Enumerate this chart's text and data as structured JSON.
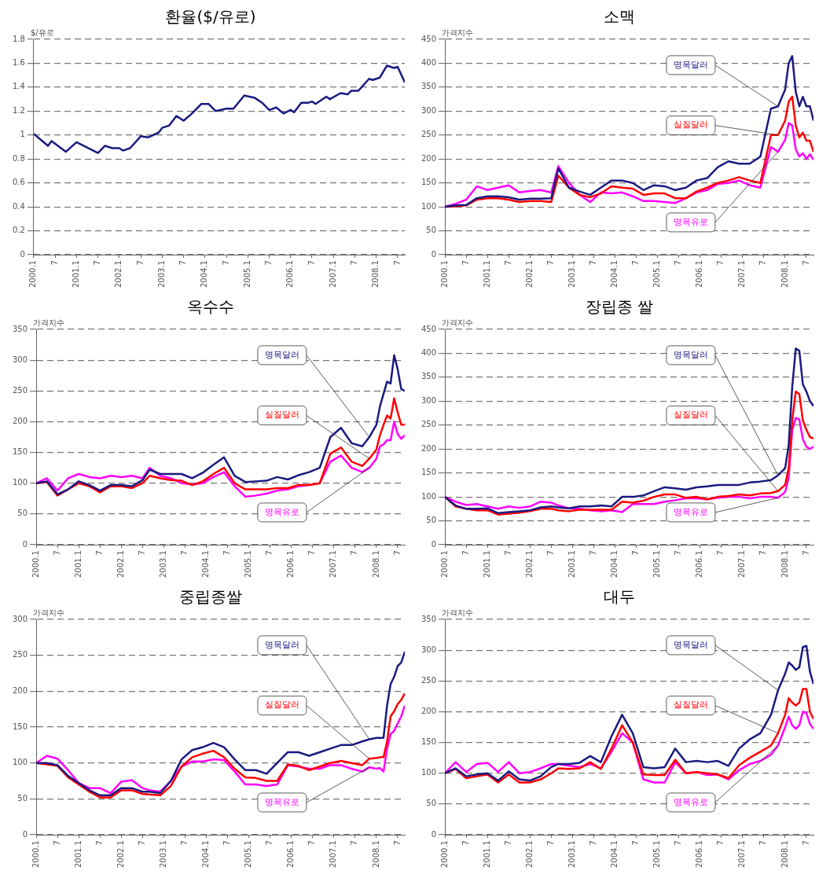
{
  "chart_data": [
    {
      "type": "line",
      "title": "환율($/유로)",
      "ylabel": "$/유로",
      "grid": "y",
      "marker": "none",
      "xlim": [
        "2000-01",
        "2008-09"
      ],
      "ylim": [
        0,
        1.8
      ],
      "yticks": [
        0,
        0.2,
        0.4,
        0.6,
        0.8,
        1,
        1.2,
        1.4,
        1.6,
        1.8
      ],
      "xticks": [
        {
          "value": "2000-01",
          "label": "2000.1"
        },
        {
          "value": "2000-07",
          "label": "7"
        },
        {
          "value": "2001-01",
          "label": "2001.1"
        },
        {
          "value": "2001-07",
          "label": "7"
        },
        {
          "value": "2002-01",
          "label": "2002.1"
        },
        {
          "value": "2002-07",
          "label": "7"
        },
        {
          "value": "2003-01",
          "label": "2003.1"
        },
        {
          "value": "2003-07",
          "label": "7"
        },
        {
          "value": "2004-01",
          "label": "2004.1"
        },
        {
          "value": "2004-07",
          "label": "7"
        },
        {
          "value": "2005-01",
          "label": "2005.1"
        },
        {
          "value": "2005-07",
          "label": "7"
        },
        {
          "value": "2006-01",
          "label": "2006.1"
        },
        {
          "value": "2006-07",
          "label": "7"
        },
        {
          "value": "2007-01",
          "label": "2007.1"
        },
        {
          "value": "2007-07",
          "label": "7"
        },
        {
          "value": "2008-01",
          "label": "2008.1"
        },
        {
          "value": "2008-07",
          "label": "7"
        }
      ],
      "x": [
        "2000-01",
        "2000-05",
        "2000-06",
        "2000-10",
        "2001-01",
        "2001-07",
        "2001-09",
        "2001-11",
        "2002-01",
        "2002-02",
        "2002-04",
        "2002-07",
        "2002-09",
        "2002-12",
        "2003-01",
        "2003-03",
        "2003-05",
        "2003-07",
        "2003-09",
        "2003-12",
        "2004-02",
        "2004-04",
        "2004-07",
        "2004-09",
        "2004-12",
        "2005-03",
        "2005-05",
        "2005-07",
        "2005-09",
        "2005-11",
        "2006-01",
        "2006-02",
        "2006-04",
        "2006-06",
        "2006-07",
        "2006-08",
        "2006-11",
        "2006-12",
        "2007-03",
        "2007-05",
        "2007-06",
        "2007-08",
        "2007-11",
        "2007-12",
        "2008-02",
        "2008-04",
        "2008-06",
        "2008-07",
        "2008-09"
      ],
      "series": [
        {
          "color": "#1a1a80",
          "values": [
            1.01,
            0.91,
            0.95,
            0.86,
            0.94,
            0.85,
            0.91,
            0.89,
            0.89,
            0.87,
            0.89,
            0.99,
            0.98,
            1.02,
            1.06,
            1.08,
            1.16,
            1.12,
            1.17,
            1.26,
            1.26,
            1.2,
            1.22,
            1.22,
            1.33,
            1.31,
            1.27,
            1.21,
            1.23,
            1.18,
            1.21,
            1.19,
            1.27,
            1.27,
            1.28,
            1.26,
            1.32,
            1.3,
            1.35,
            1.34,
            1.37,
            1.37,
            1.47,
            1.46,
            1.48,
            1.58,
            1.56,
            1.57,
            1.44
          ]
        }
      ]
    },
    {
      "type": "line",
      "title": "소맥",
      "ylabel": "가격지수",
      "grid": "y",
      "marker": "none",
      "xlim": [
        "2000-01",
        "2008-09"
      ],
      "ylim": [
        0,
        450
      ],
      "yticks": [
        0,
        50,
        100,
        150,
        200,
        250,
        300,
        350,
        400,
        450
      ],
      "xticks": [
        {
          "value": "2000-01",
          "label": "2000.1"
        },
        {
          "value": "2000-07",
          "label": "7"
        },
        {
          "value": "2001-01",
          "label": "2001.1"
        },
        {
          "value": "2001-07",
          "label": "7"
        },
        {
          "value": "2002-01",
          "label": "2002.1"
        },
        {
          "value": "2002-07",
          "label": "7"
        },
        {
          "value": "2003-01",
          "label": "2003.1"
        },
        {
          "value": "2003-07",
          "label": "7"
        },
        {
          "value": "2004-01",
          "label": "2004.1"
        },
        {
          "value": "2004-07",
          "label": "7"
        },
        {
          "value": "2005-01",
          "label": "2005.1"
        },
        {
          "value": "2005-07",
          "label": "7"
        },
        {
          "value": "2006-01",
          "label": "2006.1"
        },
        {
          "value": "2006-07",
          "label": "7"
        },
        {
          "value": "2007-01",
          "label": "2007.1"
        },
        {
          "value": "2007-07",
          "label": "7"
        },
        {
          "value": "2008-01",
          "label": "2008.1"
        },
        {
          "value": "2008-07",
          "label": "7"
        }
      ],
      "x": [
        "2000-01",
        "2000-04",
        "2000-07",
        "2000-10",
        "2001-01",
        "2001-04",
        "2001-07",
        "2001-10",
        "2002-01",
        "2002-04",
        "2002-07",
        "2002-09",
        "2002-12",
        "2003-03",
        "2003-06",
        "2003-09",
        "2003-12",
        "2004-03",
        "2004-06",
        "2004-09",
        "2004-12",
        "2005-03",
        "2005-06",
        "2005-09",
        "2005-12",
        "2006-03",
        "2006-06",
        "2006-09",
        "2006-12",
        "2007-03",
        "2007-06",
        "2007-09",
        "2007-11",
        "2008-01",
        "2008-02",
        "2008-03",
        "2008-04",
        "2008-05",
        "2008-06",
        "2008-07",
        "2008-08",
        "2008-09"
      ],
      "series": [
        {
          "name": "명목달러",
          "color": "#1a1a80",
          "values": [
            100,
            103,
            104,
            118,
            122,
            122,
            120,
            115,
            117,
            117,
            118,
            180,
            140,
            132,
            125,
            140,
            155,
            155,
            150,
            135,
            145,
            143,
            135,
            140,
            155,
            160,
            183,
            195,
            190,
            190,
            205,
            305,
            310,
            345,
            400,
            415,
            340,
            310,
            330,
            310,
            310,
            280
          ]
        },
        {
          "name": "실질달러",
          "color": "#ff0000",
          "values": [
            100,
            101,
            103,
            115,
            118,
            118,
            115,
            110,
            112,
            112,
            110,
            165,
            140,
            125,
            120,
            128,
            143,
            140,
            138,
            125,
            128,
            128,
            118,
            118,
            132,
            140,
            150,
            155,
            162,
            155,
            150,
            250,
            250,
            280,
            320,
            330,
            270,
            245,
            255,
            238,
            238,
            215
          ]
        },
        {
          "name": "명목유로",
          "color": "#ff00ff",
          "values": [
            100,
            106,
            115,
            143,
            135,
            140,
            145,
            130,
            133,
            135,
            130,
            185,
            150,
            125,
            110,
            130,
            128,
            130,
            122,
            112,
            112,
            110,
            108,
            118,
            130,
            135,
            148,
            150,
            155,
            145,
            140,
            225,
            215,
            240,
            275,
            270,
            220,
            205,
            212,
            200,
            210,
            198
          ]
        }
      ]
    },
    {
      "type": "line",
      "title": "옥수수",
      "ylabel": "가격지수",
      "grid": "y",
      "marker": "none",
      "xlim": [
        "2000-01",
        "2008-09"
      ],
      "ylim": [
        0,
        350
      ],
      "yticks": [
        0,
        50,
        100,
        150,
        200,
        250,
        300,
        350
      ],
      "xticks": [
        {
          "value": "2000-01",
          "label": "2000.1"
        },
        {
          "value": "2000-07",
          "label": "7"
        },
        {
          "value": "2001-01",
          "label": "2001.1"
        },
        {
          "value": "2001-07",
          "label": "7"
        },
        {
          "value": "2002-01",
          "label": "2002.1"
        },
        {
          "value": "2002-07",
          "label": "7"
        },
        {
          "value": "2003-01",
          "label": "2003.1"
        },
        {
          "value": "2003-07",
          "label": "7"
        },
        {
          "value": "2004-01",
          "label": "2004.1"
        },
        {
          "value": "2004-07",
          "label": "7"
        },
        {
          "value": "2005-01",
          "label": "2005.1"
        },
        {
          "value": "2005-07",
          "label": "7"
        },
        {
          "value": "2006-01",
          "label": "2006.1"
        },
        {
          "value": "2006-07",
          "label": "7"
        },
        {
          "value": "2007-01",
          "label": "2007.1"
        },
        {
          "value": "2007-07",
          "label": "7"
        },
        {
          "value": "2008-01",
          "label": "2008.1"
        },
        {
          "value": "2008-07",
          "label": "7"
        }
      ],
      "x": [
        "2000-01",
        "2000-04",
        "2000-07",
        "2000-10",
        "2001-01",
        "2001-04",
        "2001-07",
        "2001-10",
        "2002-01",
        "2002-04",
        "2002-07",
        "2002-09",
        "2002-12",
        "2003-03",
        "2003-06",
        "2003-09",
        "2003-12",
        "2004-03",
        "2004-06",
        "2004-09",
        "2004-12",
        "2005-03",
        "2005-06",
        "2005-09",
        "2005-12",
        "2006-03",
        "2006-06",
        "2006-09",
        "2006-12",
        "2007-03",
        "2007-06",
        "2007-09",
        "2007-11",
        "2008-01",
        "2008-02",
        "2008-03",
        "2008-04",
        "2008-05",
        "2008-06",
        "2008-07",
        "2008-08",
        "2008-09"
      ],
      "series": [
        {
          "name": "명목달러",
          "color": "#1a1a80",
          "values": [
            100,
            103,
            82,
            90,
            103,
            97,
            88,
            97,
            97,
            95,
            105,
            122,
            115,
            115,
            115,
            108,
            117,
            130,
            142,
            112,
            102,
            103,
            104,
            110,
            106,
            113,
            118,
            125,
            175,
            190,
            165,
            160,
            175,
            195,
            225,
            245,
            265,
            262,
            308,
            285,
            253,
            250
          ]
        },
        {
          "name": "실질달러",
          "color": "#ff0000",
          "values": [
            100,
            102,
            80,
            90,
            100,
            95,
            85,
            95,
            95,
            92,
            100,
            112,
            108,
            105,
            104,
            97,
            103,
            115,
            125,
            100,
            90,
            90,
            90,
            92,
            92,
            97,
            97,
            100,
            148,
            158,
            135,
            128,
            140,
            155,
            178,
            195,
            210,
            205,
            238,
            215,
            195,
            195
          ]
        },
        {
          "name": "명목유로",
          "color": "#ff00ff",
          "values": [
            100,
            108,
            88,
            108,
            115,
            110,
            108,
            112,
            110,
            112,
            108,
            125,
            112,
            108,
            100,
            98,
            100,
            110,
            118,
            95,
            78,
            80,
            83,
            88,
            90,
            95,
            97,
            100,
            135,
            145,
            125,
            118,
            125,
            140,
            160,
            163,
            170,
            170,
            200,
            180,
            172,
            178
          ]
        }
      ]
    },
    {
      "type": "line",
      "title": "장립종 쌀",
      "ylabel": "가격지수",
      "grid": "y",
      "marker": "none",
      "xlim": [
        "2000-01",
        "2008-09"
      ],
      "ylim": [
        0,
        450
      ],
      "yticks": [
        0,
        50,
        100,
        150,
        200,
        250,
        300,
        350,
        400,
        450
      ],
      "xticks": [
        {
          "value": "2000-01",
          "label": "2000.1"
        },
        {
          "value": "2000-07",
          "label": "7"
        },
        {
          "value": "2001-01",
          "label": "2001.1"
        },
        {
          "value": "2001-07",
          "label": "7"
        },
        {
          "value": "2002-01",
          "label": "2002.1"
        },
        {
          "value": "2002-07",
          "label": "7"
        },
        {
          "value": "2003-01",
          "label": "2003.1"
        },
        {
          "value": "2003-07",
          "label": "7"
        },
        {
          "value": "2004-01",
          "label": "2004.1"
        },
        {
          "value": "2004-07",
          "label": "7"
        },
        {
          "value": "2005-01",
          "label": "2005.1"
        },
        {
          "value": "2005-07",
          "label": "7"
        },
        {
          "value": "2006-01",
          "label": "2006.1"
        },
        {
          "value": "2006-07",
          "label": "7"
        },
        {
          "value": "2007-01",
          "label": "2007.1"
        },
        {
          "value": "2007-07",
          "label": "7"
        },
        {
          "value": "2008-01",
          "label": "2008.1"
        },
        {
          "value": "2008-07",
          "label": "7"
        }
      ],
      "x": [
        "2000-01",
        "2000-04",
        "2000-07",
        "2000-10",
        "2001-01",
        "2001-04",
        "2001-07",
        "2001-10",
        "2002-01",
        "2002-04",
        "2002-07",
        "2002-09",
        "2002-12",
        "2003-03",
        "2003-06",
        "2003-09",
        "2003-12",
        "2004-03",
        "2004-06",
        "2004-09",
        "2004-12",
        "2005-03",
        "2005-06",
        "2005-09",
        "2005-12",
        "2006-03",
        "2006-06",
        "2006-09",
        "2006-12",
        "2007-03",
        "2007-06",
        "2007-09",
        "2007-11",
        "2008-01",
        "2008-02",
        "2008-03",
        "2008-04",
        "2008-05",
        "2008-06",
        "2008-07",
        "2008-08",
        "2008-09"
      ],
      "series": [
        {
          "name": "명목달러",
          "color": "#1a1a80",
          "values": [
            100,
            82,
            75,
            75,
            76,
            66,
            68,
            70,
            72,
            78,
            80,
            78,
            76,
            80,
            80,
            82,
            80,
            100,
            100,
            103,
            112,
            120,
            118,
            115,
            120,
            122,
            125,
            125,
            125,
            130,
            132,
            135,
            145,
            160,
            208,
            330,
            410,
            405,
            335,
            320,
            300,
            290
          ]
        },
        {
          "name": "실질달러",
          "color": "#ff0000",
          "values": [
            100,
            80,
            75,
            72,
            72,
            63,
            65,
            67,
            70,
            75,
            75,
            72,
            70,
            73,
            73,
            73,
            73,
            90,
            88,
            92,
            100,
            105,
            105,
            98,
            100,
            95,
            100,
            102,
            105,
            103,
            107,
            108,
            112,
            125,
            160,
            260,
            320,
            315,
            260,
            240,
            225,
            222
          ]
        },
        {
          "name": "명목유로",
          "color": "#ff00ff",
          "values": [
            100,
            90,
            83,
            85,
            80,
            75,
            80,
            77,
            80,
            90,
            88,
            82,
            76,
            75,
            72,
            70,
            72,
            68,
            85,
            85,
            85,
            90,
            93,
            97,
            97,
            95,
            98,
            100,
            100,
            97,
            100,
            100,
            98,
            110,
            140,
            240,
            265,
            262,
            220,
            205,
            200,
            205
          ]
        }
      ]
    },
    {
      "type": "line",
      "title": "중립종쌀",
      "ylabel": "가격지수",
      "grid": "y",
      "marker": "none",
      "xlim": [
        "2000-01",
        "2008-09"
      ],
      "ylim": [
        0,
        300
      ],
      "yticks": [
        0,
        50,
        100,
        150,
        200,
        250,
        300
      ],
      "xticks": [
        {
          "value": "2000-01",
          "label": "2000.1"
        },
        {
          "value": "2000-07",
          "label": "7"
        },
        {
          "value": "2001-01",
          "label": "2001.1"
        },
        {
          "value": "2001-07",
          "label": "7"
        },
        {
          "value": "2002-01",
          "label": "2002.1"
        },
        {
          "value": "2002-07",
          "label": "7"
        },
        {
          "value": "2003-01",
          "label": "2003.1"
        },
        {
          "value": "2003-07",
          "label": "7"
        },
        {
          "value": "2004-01",
          "label": "2004.1"
        },
        {
          "value": "2004-07",
          "label": "7"
        },
        {
          "value": "2005-01",
          "label": "2005.1"
        },
        {
          "value": "2005-07",
          "label": "7"
        },
        {
          "value": "2006-01",
          "label": "2006.1"
        },
        {
          "value": "2006-07",
          "label": "7"
        },
        {
          "value": "2007-01",
          "label": "2007.1"
        },
        {
          "value": "2007-07",
          "label": "7"
        },
        {
          "value": "2008-01",
          "label": "2008.1"
        },
        {
          "value": "2008-07",
          "label": "7"
        }
      ],
      "x": [
        "2000-01",
        "2000-04",
        "2000-07",
        "2000-10",
        "2001-01",
        "2001-04",
        "2001-07",
        "2001-10",
        "2002-01",
        "2002-04",
        "2002-07",
        "2002-09",
        "2002-12",
        "2003-03",
        "2003-06",
        "2003-09",
        "2003-12",
        "2004-03",
        "2004-06",
        "2004-09",
        "2004-12",
        "2005-03",
        "2005-06",
        "2005-09",
        "2005-12",
        "2006-03",
        "2006-06",
        "2006-09",
        "2006-12",
        "2007-03",
        "2007-06",
        "2007-09",
        "2007-11",
        "2008-01",
        "2008-02",
        "2008-03",
        "2008-04",
        "2008-05",
        "2008-06",
        "2008-07",
        "2008-08",
        "2008-09"
      ],
      "series": [
        {
          "name": "명목달러",
          "color": "#1a1a80",
          "values": [
            100,
            100,
            97,
            82,
            72,
            62,
            55,
            55,
            65,
            65,
            60,
            60,
            58,
            75,
            105,
            118,
            122,
            128,
            122,
            105,
            90,
            90,
            85,
            100,
            115,
            115,
            110,
            115,
            120,
            125,
            125,
            130,
            133,
            135,
            135,
            135,
            180,
            210,
            220,
            235,
            240,
            255
          ]
        },
        {
          "name": "실질달러",
          "color": "#ff0000",
          "values": [
            100,
            98,
            96,
            80,
            70,
            60,
            52,
            52,
            62,
            62,
            57,
            56,
            55,
            68,
            95,
            108,
            113,
            117,
            108,
            92,
            80,
            79,
            75,
            75,
            98,
            96,
            90,
            95,
            100,
            103,
            100,
            97,
            106,
            107,
            108,
            108,
            130,
            165,
            172,
            182,
            188,
            197
          ]
        },
        {
          "name": "명목유로",
          "color": "#ff00ff",
          "values": [
            100,
            110,
            106,
            90,
            72,
            65,
            65,
            58,
            74,
            76,
            65,
            62,
            60,
            75,
            95,
            102,
            102,
            105,
            104,
            88,
            70,
            70,
            68,
            70,
            97,
            95,
            92,
            92,
            97,
            97,
            92,
            88,
            94,
            92,
            93,
            88,
            120,
            140,
            145,
            155,
            165,
            180
          ]
        }
      ]
    },
    {
      "type": "line",
      "title": "대두",
      "ylabel": "가격지수",
      "grid": "y",
      "marker": "none",
      "xlim": [
        "2000-01",
        "2008-09"
      ],
      "ylim": [
        0,
        350
      ],
      "yticks": [
        0,
        50,
        100,
        150,
        200,
        250,
        300,
        350
      ],
      "xticks": [
        {
          "value": "2000-01",
          "label": "2000.1"
        },
        {
          "value": "2000-07",
          "label": "7"
        },
        {
          "value": "2001-01",
          "label": "2001.1"
        },
        {
          "value": "2001-07",
          "label": "7"
        },
        {
          "value": "2002-01",
          "label": "2002.1"
        },
        {
          "value": "2002-07",
          "label": "7"
        },
        {
          "value": "2003-01",
          "label": "2003.1"
        },
        {
          "value": "2003-07",
          "label": "7"
        },
        {
          "value": "2004-01",
          "label": "2004.1"
        },
        {
          "value": "2004-07",
          "label": "7"
        },
        {
          "value": "2005-01",
          "label": "2005.1"
        },
        {
          "value": "2005-07",
          "label": "7"
        },
        {
          "value": "2006-01",
          "label": "2006.1"
        },
        {
          "value": "2006-07",
          "label": "7"
        },
        {
          "value": "2007-01",
          "label": "2007.1"
        },
        {
          "value": "2007-07",
          "label": "7"
        },
        {
          "value": "2008-01",
          "label": "2008.1"
        },
        {
          "value": "2008-07",
          "label": "7"
        }
      ],
      "x": [
        "2000-01",
        "2000-04",
        "2000-07",
        "2000-10",
        "2001-01",
        "2001-04",
        "2001-07",
        "2001-10",
        "2002-01",
        "2002-04",
        "2002-07",
        "2002-09",
        "2002-12",
        "2003-03",
        "2003-06",
        "2003-09",
        "2003-12",
        "2004-03",
        "2004-06",
        "2004-09",
        "2004-12",
        "2005-03",
        "2005-06",
        "2005-09",
        "2005-12",
        "2006-03",
        "2006-06",
        "2006-09",
        "2006-12",
        "2007-03",
        "2007-06",
        "2007-09",
        "2007-11",
        "2008-01",
        "2008-02",
        "2008-03",
        "2008-04",
        "2008-05",
        "2008-06",
        "2008-07",
        "2008-08",
        "2008-09"
      ],
      "series": [
        {
          "name": "명목달러",
          "color": "#1a1a80",
          "values": [
            100,
            108,
            95,
            98,
            100,
            88,
            103,
            90,
            88,
            95,
            110,
            115,
            115,
            117,
            128,
            118,
            160,
            195,
            165,
            110,
            108,
            110,
            140,
            118,
            120,
            118,
            120,
            112,
            140,
            155,
            165,
            195,
            235,
            262,
            280,
            275,
            268,
            272,
            305,
            307,
            265,
            245
          ]
        },
        {
          "name": "실질달러",
          "color": "#ff0000",
          "values": [
            100,
            107,
            92,
            95,
            98,
            85,
            98,
            85,
            85,
            90,
            100,
            108,
            107,
            108,
            118,
            107,
            140,
            178,
            150,
            98,
            97,
            97,
            122,
            100,
            102,
            100,
            98,
            92,
            113,
            125,
            135,
            145,
            165,
            195,
            222,
            215,
            210,
            215,
            237,
            237,
            200,
            188
          ]
        },
        {
          "name": "명목유로",
          "color": "#ff00ff",
          "values": [
            100,
            118,
            102,
            115,
            117,
            102,
            118,
            100,
            102,
            108,
            115,
            115,
            112,
            110,
            115,
            108,
            135,
            165,
            150,
            90,
            85,
            85,
            118,
            100,
            102,
            97,
            98,
            90,
            105,
            115,
            120,
            130,
            145,
            175,
            192,
            178,
            172,
            178,
            200,
            198,
            180,
            172
          ]
        }
      ]
    }
  ]
}
